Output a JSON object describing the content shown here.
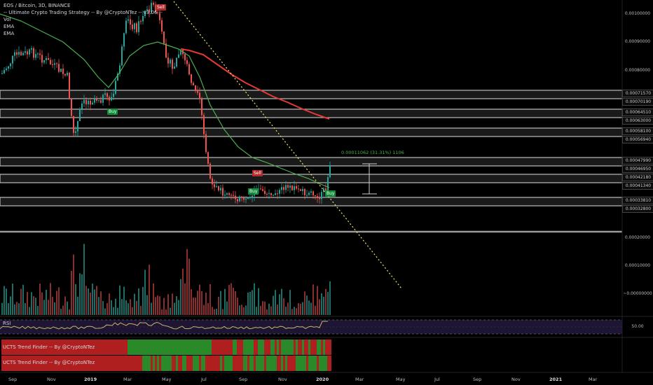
{
  "legend": {
    "symbol": "EOS / Bitcoin, 3D, BINANCE",
    "strategy": "-- Ultimate Crypto Trading Strategy -- By @CryptoNTez -- v3.06 --",
    "vol": "Vol",
    "ema1": "EMA",
    "ema2": "EMA"
  },
  "indicators": {
    "rsi_label": "RSI",
    "rsi_level": "50.00",
    "ucts1": "UCTS Trend Finder -- By @CryptoNTez",
    "ucts2": "UCTS Trend Finder -- By @CryptoNTez"
  },
  "price_axis": {
    "labels": [
      "0.00100000",
      "0.00090000",
      "0.00080000",
      "0.00020000",
      "0.00010000",
      "~0.00000000"
    ],
    "levels": [
      "0.00071570",
      "0.00070190",
      "0.00064510",
      "0.00063000",
      "0.00058100",
      "0.00056940",
      "0.00047990",
      "0.00046950",
      "0.00042180",
      "0.00041340",
      "0.00033810",
      "0.00032800"
    ]
  },
  "time_axis": [
    "Sep",
    "Nov",
    "2019",
    "Mar",
    "May",
    "Jul",
    "Sep",
    "Nov",
    "2020",
    "Mar",
    "May",
    "Jul",
    "Sep",
    "Nov",
    "2021",
    "Mar"
  ],
  "measurement": "0.00011062 (31.31%) 1106",
  "signals": [
    "Sell",
    "Buy",
    "Sell",
    "Buy",
    "Buy"
  ],
  "colors": {
    "up": "#26a69a",
    "down": "#ef5350",
    "ema_fast": "#4caf50",
    "ema_slow": "#e53935",
    "trendline": "#f5e663",
    "rsi_line": "#c8b56a",
    "rsi_band": "#1e1433"
  },
  "chart_data": {
    "type": "candlestick",
    "ylim": [
      0.0003,
      0.00105
    ],
    "key_levels": [
      0.0007157,
      0.0007019,
      0.0006451,
      0.00063,
      0.000581,
      0.0005694,
      0.0004799,
      0.0004695,
      0.0004218,
      0.0004134,
      0.0003381,
      0.000328
    ]
  }
}
